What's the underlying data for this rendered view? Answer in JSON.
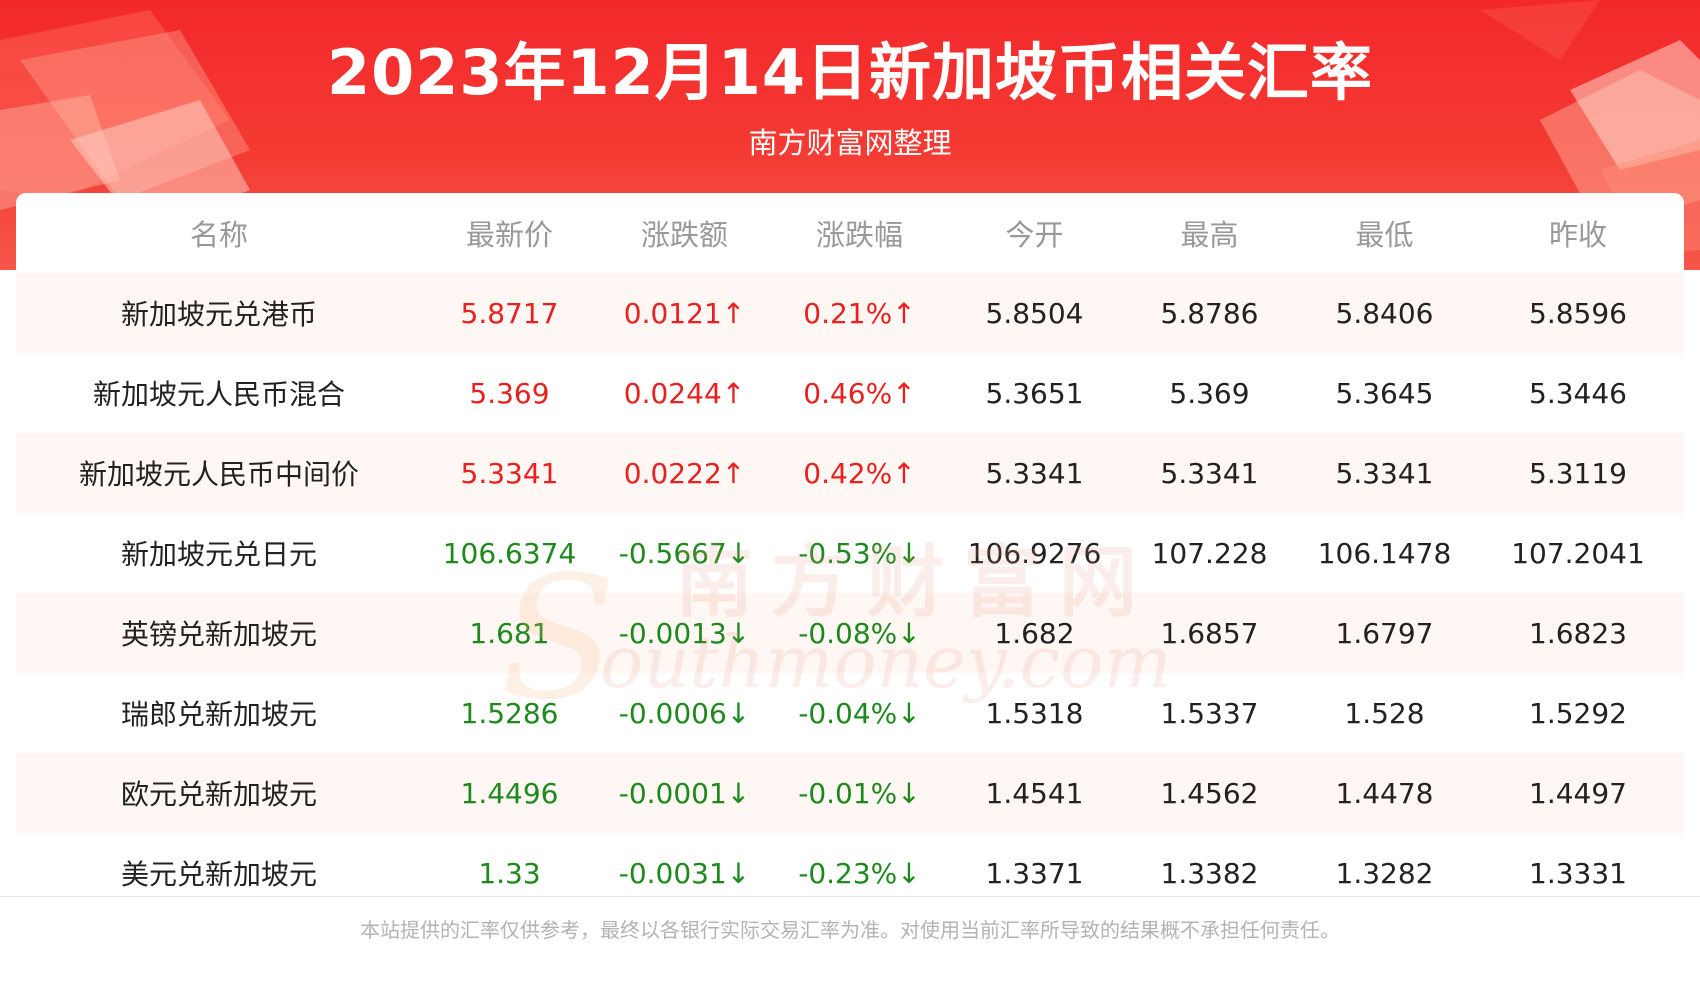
{
  "title": "2023年12月14日新加坡币相关汇率",
  "subtitle": "南方财富网整理",
  "watermark": {
    "cn": "南方财富网",
    "en": "outhmoney.com",
    "s": "S"
  },
  "colors": {
    "banner": "#f3282b",
    "up": "#e8201f",
    "down": "#1e8a1e",
    "row_stripe": "#fff7f3"
  },
  "table": {
    "headers": [
      "名称",
      "最新价",
      "涨跌额",
      "涨跌幅",
      "今开",
      "最高",
      "最低",
      "昨收"
    ],
    "rows": [
      {
        "name": "新加坡元兑港币",
        "latest": "5.8717",
        "change": "0.0121↑",
        "pct": "0.21%↑",
        "open": "5.8504",
        "high": "5.8786",
        "low": "5.8406",
        "prev": "5.8596",
        "trend": "up"
      },
      {
        "name": "新加坡元人民币混合",
        "latest": "5.369",
        "change": "0.0244↑",
        "pct": "0.46%↑",
        "open": "5.3651",
        "high": "5.369",
        "low": "5.3645",
        "prev": "5.3446",
        "trend": "up"
      },
      {
        "name": "新加坡元人民币中间价",
        "latest": "5.3341",
        "change": "0.0222↑",
        "pct": "0.42%↑",
        "open": "5.3341",
        "high": "5.3341",
        "low": "5.3341",
        "prev": "5.3119",
        "trend": "up"
      },
      {
        "name": "新加坡元兑日元",
        "latest": "106.6374",
        "change": "-0.5667↓",
        "pct": "-0.53%↓",
        "open": "106.9276",
        "high": "107.228",
        "low": "106.1478",
        "prev": "107.2041",
        "trend": "down"
      },
      {
        "name": "英镑兑新加坡元",
        "latest": "1.681",
        "change": "-0.0013↓",
        "pct": "-0.08%↓",
        "open": "1.682",
        "high": "1.6857",
        "low": "1.6797",
        "prev": "1.6823",
        "trend": "down"
      },
      {
        "name": "瑞郎兑新加坡元",
        "latest": "1.5286",
        "change": "-0.0006↓",
        "pct": "-0.04%↓",
        "open": "1.5318",
        "high": "1.5337",
        "low": "1.528",
        "prev": "1.5292",
        "trend": "down"
      },
      {
        "name": "欧元兑新加坡元",
        "latest": "1.4496",
        "change": "-0.0001↓",
        "pct": "-0.01%↓",
        "open": "1.4541",
        "high": "1.4562",
        "low": "1.4478",
        "prev": "1.4497",
        "trend": "down"
      },
      {
        "name": "美元兑新加坡元",
        "latest": "1.33",
        "change": "-0.0031↓",
        "pct": "-0.23%↓",
        "open": "1.3371",
        "high": "1.3382",
        "low": "1.3282",
        "prev": "1.3331",
        "trend": "down"
      }
    ]
  },
  "disclaimer": "本站提供的汇率仅供参考，最终以各银行实际交易汇率为准。对使用当前汇率所导致的结果概不承担任何责任。"
}
